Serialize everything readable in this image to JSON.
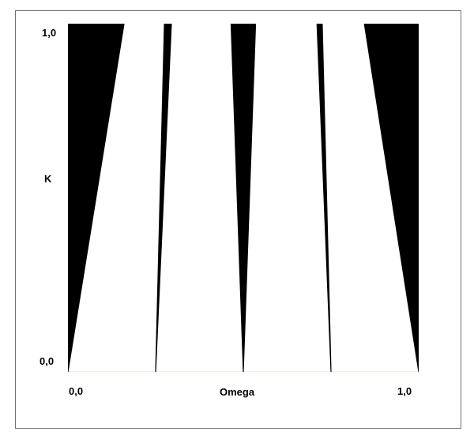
{
  "axes": {
    "y_label": "K",
    "x_label": "Omega",
    "y_top_tick": "1,0",
    "y_bottom_tick": "0,0",
    "x_left_tick": "0,0",
    "x_right_tick": "1,0"
  },
  "chart_data": {
    "type": "area",
    "xlabel": "Omega",
    "ylabel": "K",
    "xlim": [
      0,
      1
    ],
    "ylim": [
      0,
      1
    ],
    "fill_color": "#000000",
    "background_color": "#ffffff",
    "regions": [
      {
        "name": "",
        "apex": 0.0,
        "top_left": 0.0,
        "top_right": 0.16
      },
      {
        "name": "",
        "apex": 0.25,
        "top_left": 0.275,
        "top_right": 0.295
      },
      {
        "name": "",
        "apex": 0.5,
        "top_left": 0.465,
        "top_right": 0.535
      },
      {
        "name": "",
        "apex": 0.75,
        "top_left": 0.71,
        "top_right": 0.725
      },
      {
        "name": "",
        "apex": 1.0,
        "top_left": 0.845,
        "top_right": 1.0
      }
    ]
  }
}
